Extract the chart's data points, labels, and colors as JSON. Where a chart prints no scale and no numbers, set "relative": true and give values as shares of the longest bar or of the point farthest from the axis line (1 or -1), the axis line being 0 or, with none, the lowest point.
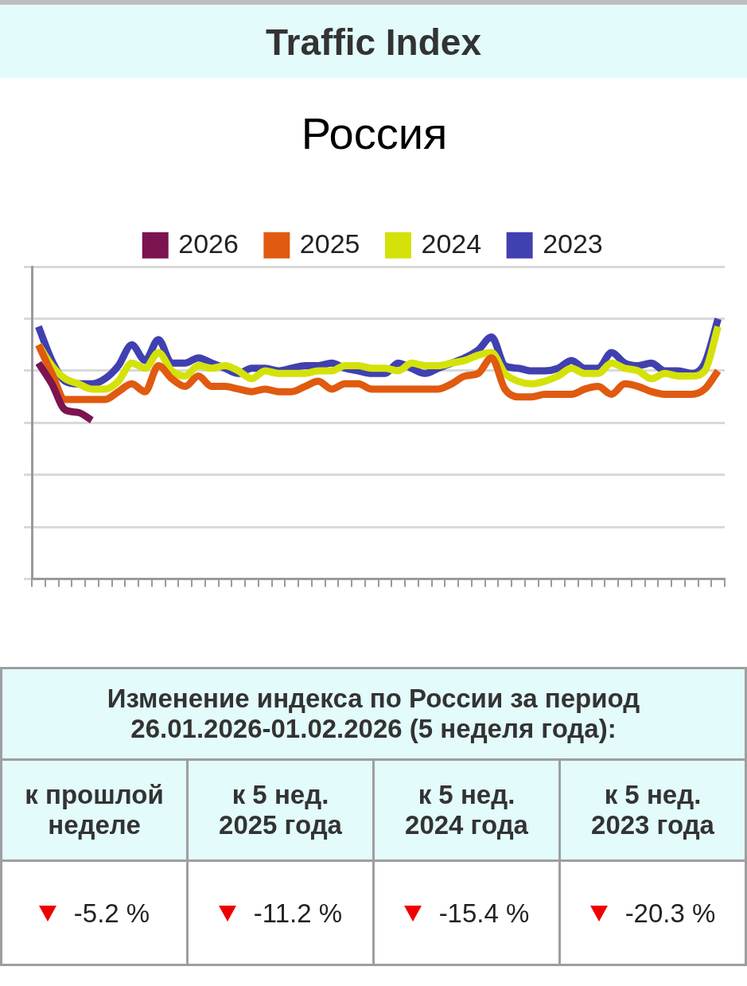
{
  "chart_data": [
    {
      "type": "line",
      "title": "Traffic Index",
      "subtitle": "Россия",
      "relative": true,
      "categories": [
        null,
        null,
        null,
        null,
        null,
        null,
        null,
        null,
        null,
        null,
        null,
        null,
        null,
        null,
        null,
        null,
        null,
        null,
        null,
        null,
        null,
        null,
        null,
        null,
        null,
        null,
        null,
        null,
        null,
        null,
        null,
        null,
        null,
        null,
        null,
        null,
        null,
        null,
        null,
        null,
        null,
        null,
        null,
        null,
        null,
        null,
        null,
        null,
        null,
        null,
        null,
        null
      ],
      "grid": "y",
      "legend": "top",
      "marker": "none",
      "line_style": "solid",
      "series": [
        {
          "name": "2026",
          "color": "#7b1450",
          "values": [
            0.83,
            0.75,
            0.65,
            0.64,
            0.61,
            null,
            null,
            null,
            null,
            null,
            null,
            null,
            null,
            null,
            null,
            null,
            null,
            null,
            null,
            null,
            null,
            null,
            null,
            null,
            null,
            null,
            null,
            null,
            null,
            null,
            null,
            null,
            null,
            null,
            null,
            null,
            null,
            null,
            null,
            null,
            null,
            null,
            null,
            null,
            null,
            null,
            null,
            null,
            null,
            null,
            null,
            null
          ]
        },
        {
          "name": "2025",
          "color": "#e05a10",
          "values": [
            0.9,
            0.79,
            0.69,
            0.69,
            0.69,
            0.69,
            0.72,
            0.75,
            0.72,
            0.82,
            0.77,
            0.74,
            0.78,
            0.74,
            0.74,
            0.73,
            0.72,
            0.73,
            0.72,
            0.72,
            0.74,
            0.76,
            0.73,
            0.75,
            0.75,
            0.73,
            0.73,
            0.73,
            0.73,
            0.73,
            0.73,
            0.75,
            0.78,
            0.79,
            0.85,
            0.73,
            0.7,
            0.7,
            0.71,
            0.71,
            0.71,
            0.73,
            0.74,
            0.71,
            0.75,
            0.74,
            0.72,
            0.71,
            0.71,
            0.71,
            0.73,
            0.8
          ]
        },
        {
          "name": "2024",
          "color": "#d4e20a",
          "values": [
            0.9,
            0.82,
            0.77,
            0.75,
            0.73,
            0.73,
            0.76,
            0.83,
            0.81,
            0.87,
            0.8,
            0.78,
            0.82,
            0.81,
            0.82,
            0.8,
            0.77,
            0.8,
            0.79,
            0.79,
            0.79,
            0.8,
            0.8,
            0.82,
            0.82,
            0.81,
            0.81,
            0.8,
            0.83,
            0.82,
            0.82,
            0.83,
            0.84,
            0.86,
            0.87,
            0.79,
            0.76,
            0.75,
            0.76,
            0.78,
            0.81,
            0.79,
            0.79,
            0.83,
            0.81,
            0.8,
            0.77,
            0.79,
            0.78,
            0.78,
            0.8,
            0.97
          ]
        },
        {
          "name": "2023",
          "color": "#4040b0",
          "values": [
            0.97,
            0.84,
            0.76,
            0.75,
            0.75,
            0.77,
            0.82,
            0.9,
            0.84,
            0.92,
            0.83,
            0.83,
            0.85,
            0.83,
            0.81,
            0.79,
            0.81,
            0.81,
            0.8,
            0.81,
            0.82,
            0.82,
            0.83,
            0.81,
            0.8,
            0.79,
            0.79,
            0.83,
            0.81,
            0.79,
            0.81,
            0.83,
            0.85,
            0.88,
            0.93,
            0.82,
            0.81,
            0.8,
            0.8,
            0.81,
            0.84,
            0.81,
            0.81,
            0.87,
            0.83,
            0.82,
            0.83,
            0.8,
            0.8,
            0.79,
            0.83,
            1
          ]
        }
      ]
    },
    {
      "type": "other",
      "title": "Изменение индекса по России за период 26.01.2026-01.02.2026 (5 неделя года):",
      "categories": [
        "к прошлой неделе",
        "к 5 нед. 2025 года",
        "к 5 нед. 2024 года",
        "к 5 нед. 2023 года"
      ],
      "value_labels": [
        "-5.2 %",
        "-11.2 %",
        "-15.4 %",
        "-20.3 %"
      ]
    }
  ]
}
